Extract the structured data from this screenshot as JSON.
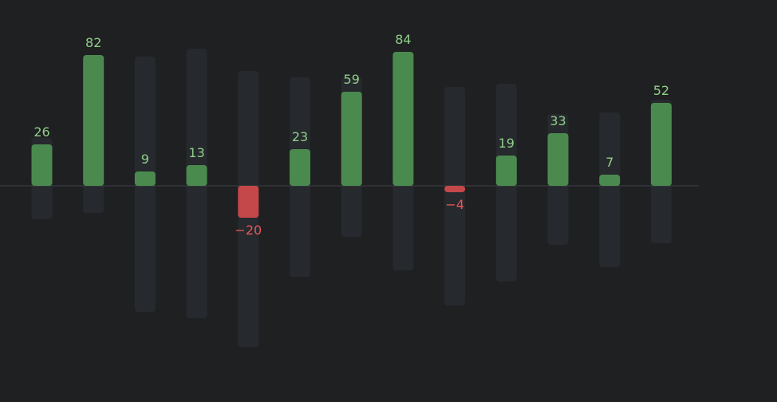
{
  "chart_data": {
    "type": "bar",
    "categories": [
      "",
      "",
      "",
      "",
      "",
      "",
      "",
      "",
      "",
      "",
      "",
      "",
      ""
    ],
    "values": [
      26,
      82,
      9,
      13,
      -20,
      23,
      59,
      84,
      -4,
      19,
      33,
      7,
      52
    ],
    "data_labels": [
      "26",
      "82",
      "9",
      "13",
      "−20",
      "23",
      "59",
      "84",
      "−4",
      "19",
      "33",
      "7",
      "52"
    ],
    "range_high": [
      30,
      79,
      81,
      86,
      72,
      68,
      68,
      68,
      62,
      64,
      45,
      46,
      54
    ],
    "range_low": [
      -21,
      -17,
      -79,
      -83,
      -101,
      -57,
      -32,
      -53,
      -75,
      -60,
      -37,
      -51,
      -36
    ],
    "title": "",
    "xlabel": "",
    "ylabel": "",
    "ylim": [
      -103,
      90
    ],
    "grid": false,
    "legend": "none",
    "colors": {
      "positive": "#4b8a4f",
      "negative": "#c4474a",
      "positive_label": "#8fcf87",
      "negative_label": "#e8575a",
      "range_track": "#26292d",
      "baseline": "#3f4144",
      "background": "#1f2022"
    }
  }
}
